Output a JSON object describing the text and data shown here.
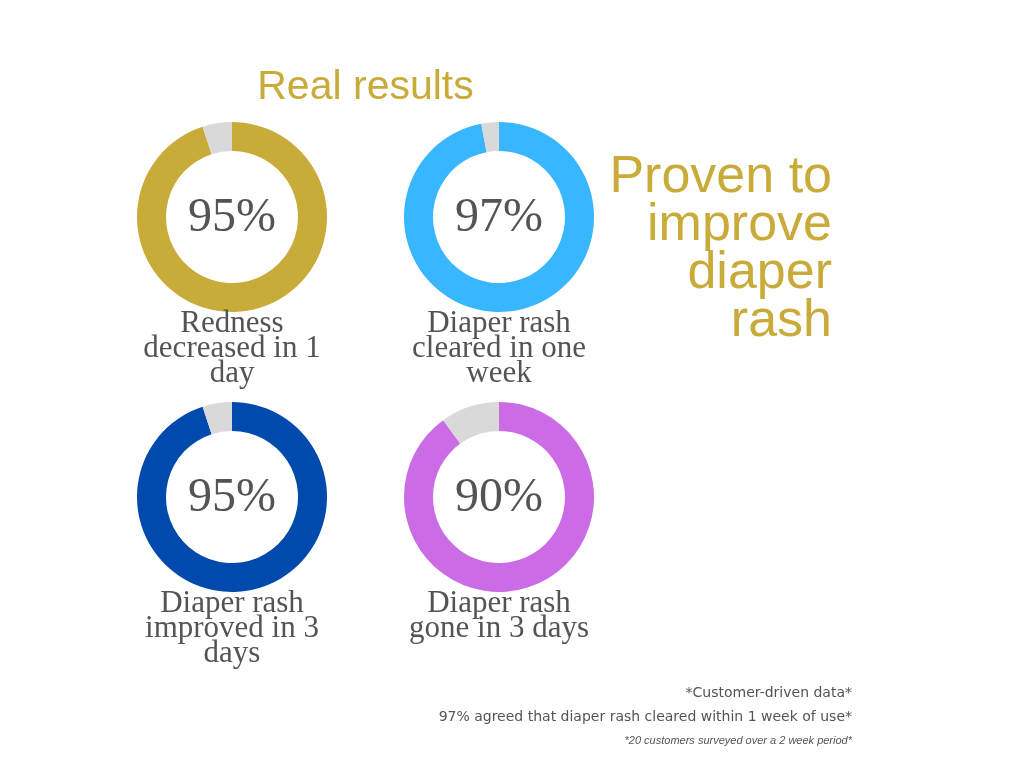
{
  "chart_data": [
    {
      "type": "other",
      "title": "Real results",
      "annotations": [
        "Proven to improve diaper rash",
        "*Customer-driven data*",
        "97% agreed that diaper rash  cleared within 1 week of use*",
        "*20 customers surveyed over  a 2 week period*"
      ]
    },
    {
      "type": "donut",
      "title": "Redness decreased in 1 day",
      "categories": [
        null,
        null
      ],
      "values": [
        95,
        5
      ],
      "colors": [
        "#c9ab3a",
        "#d9d9d9"
      ],
      "value_labels": [
        "95%",
        null
      ]
    },
    {
      "type": "donut",
      "title": "Diaper rash cleared in one week",
      "categories": [
        null,
        null
      ],
      "values": [
        97,
        3
      ],
      "colors": [
        "#38b6ff",
        "#d9d9d9"
      ],
      "value_labels": [
        "97%",
        null
      ]
    },
    {
      "type": "donut",
      "title": "Diaper rash improved in 3 days",
      "categories": [
        null,
        null
      ],
      "values": [
        95,
        5
      ],
      "colors": [
        "#004aad",
        "#d9d9d9"
      ],
      "value_labels": [
        "95%",
        null
      ]
    },
    {
      "type": "donut",
      "title": "Diaper rash gone in 3 days",
      "categories": [
        null,
        null
      ],
      "values": [
        90,
        10
      ],
      "colors": [
        "#cb6ce6",
        "#d9d9d9"
      ],
      "value_labels": [
        "90%",
        null
      ]
    }
  ]
}
